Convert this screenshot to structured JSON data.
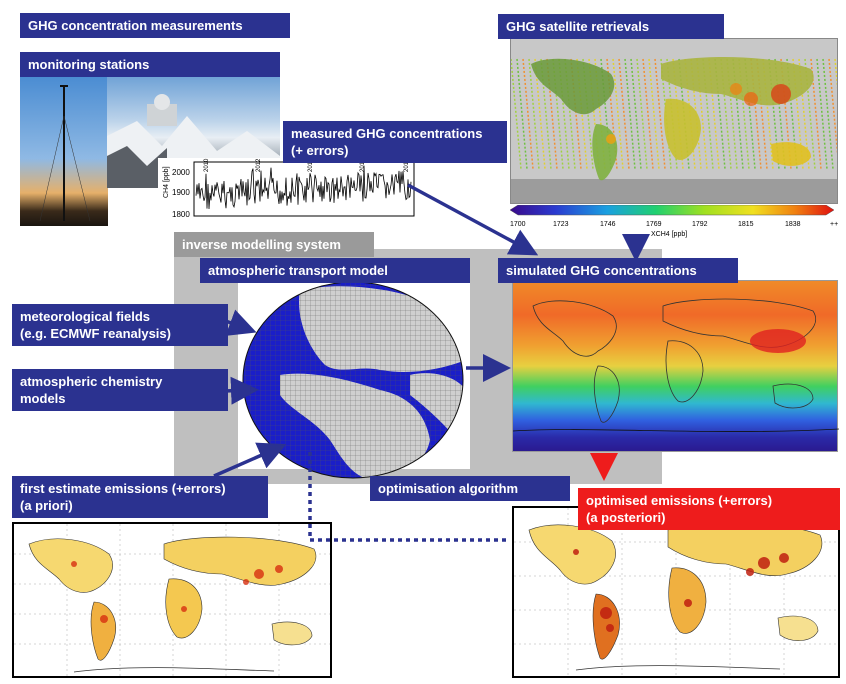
{
  "labels": {
    "ghg_concentration": "GHG concentration measurements",
    "monitoring_stations": "monitoring stations",
    "measured_line1": "measured GHG concentrations",
    "measured_line2": "(+ errors)",
    "satellite": "GHG satellite retrievals",
    "inverse_system": "inverse modelling system",
    "transport_model": "atmospheric transport model",
    "simulated": "simulated GHG concentrations",
    "met_line1": "meteorological fields",
    "met_line2": "(e.g. ECMWF reanalysis)",
    "chem_line1": "atmospheric chemistry",
    "chem_line2": "models",
    "first_line1": "first estimate emissions (+errors)",
    "first_line2": "(a priori)",
    "optimisation": "optimisation algorithm",
    "optimised_line1": "optimised emissions (+errors)",
    "optimised_line2": "(a posteriori)"
  },
  "timeseries": {
    "y_label": "CH4 [ppb]",
    "y_ticks": [
      "2000",
      "1900",
      "1800"
    ],
    "x_ticks": [
      "2010",
      "2012",
      "2014",
      "2016",
      "2018"
    ]
  },
  "colorbar": {
    "ticks": [
      "1700",
      "1723",
      "1746",
      "1769",
      "1792",
      "1815",
      "1838",
      "++"
    ],
    "label": "XCH4 [ppb]",
    "colors": [
      "#3a0a8a",
      "#2a3ad0",
      "#1aa0e0",
      "#20d070",
      "#a0e020",
      "#f0e020",
      "#f08010",
      "#e01010"
    ]
  },
  "colors": {
    "label_blue": "#2b3290",
    "highlight_red": "#ee1c1c",
    "system_gray": "#bfbfbf",
    "ocean_blue": "#1a1ec8"
  }
}
